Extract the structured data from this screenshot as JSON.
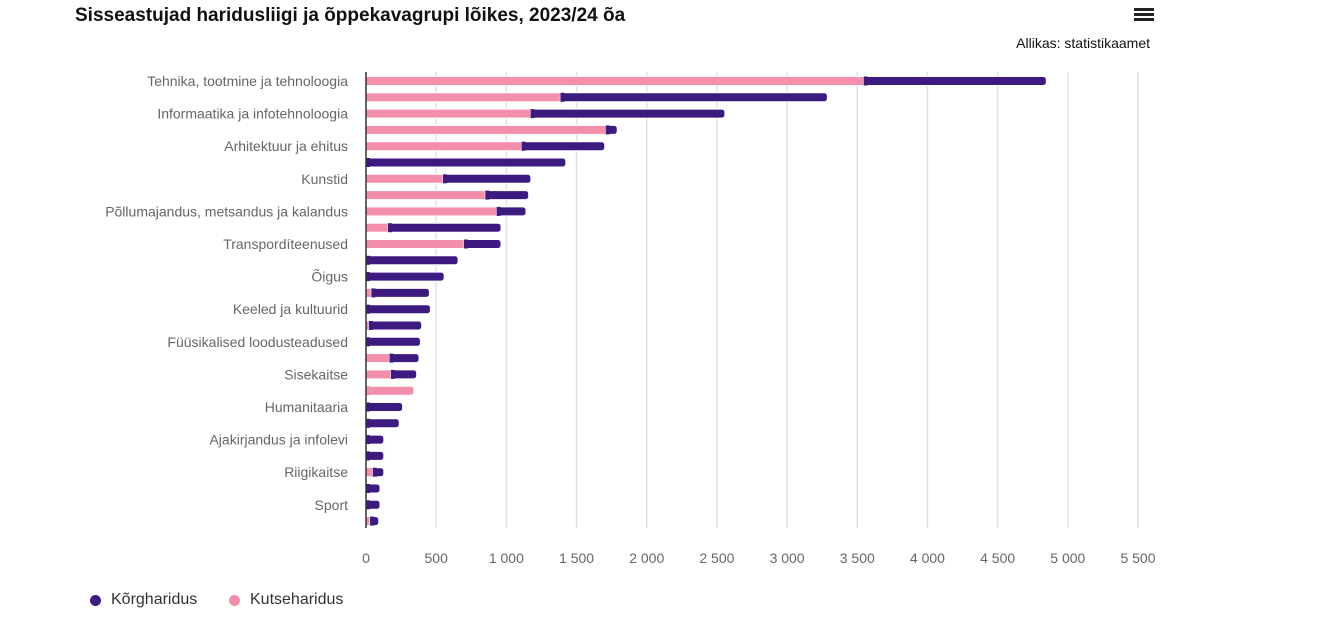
{
  "title": "Sisseastujad haridusliigi ja õppekavagrupi lõikes, 2023/24 õa",
  "source": "Allikas: statistikaamet",
  "menu_icon": "hamburger-menu-icon",
  "chart_data": {
    "type": "bar",
    "orientation": "horizontal",
    "stacked": true,
    "title": "Sisseastujad haridusliigi ja õppekavagrupi lõikes, 2023/24 õa",
    "xlabel": "",
    "ylabel": "",
    "xlim": [
      0,
      5500
    ],
    "xticks": [
      "0",
      "500",
      "1 000",
      "1 500",
      "2 000",
      "2 500",
      "3 000",
      "3 500",
      "4 000",
      "4 500",
      "5 000",
      "5 500"
    ],
    "grid": true,
    "legend_position": "bottom-left",
    "categories": [
      "Tehnika, tootmine ja tehnoloogia",
      "",
      "Informaatika ja infotehnoloogia",
      "",
      "Arhitektuur ja ehitus",
      "",
      "Kunstid",
      "",
      "Põllumajandus, metsandus ja kalandus",
      "",
      "Transpordíteenused",
      "",
      "Õigus",
      "",
      "Keeled ja kultuurid",
      "",
      "Füüsikalised loodusteadused",
      "",
      "Sisekaitse",
      "",
      "Humanitaaria",
      "",
      "Ajakirjandus ja infolevi",
      "",
      "Riigikaitse",
      "",
      "Sport",
      ""
    ],
    "series": [
      {
        "name": "Kutseharidus",
        "color": "#f48fab",
        "values": [
          3545,
          1385,
          1172,
          1707,
          1108,
          0,
          548,
          850,
          930,
          156,
          697,
          0,
          0,
          38,
          0,
          20,
          0,
          167,
          177,
          342,
          0,
          0,
          0,
          0,
          48,
          0,
          0,
          29
        ]
      },
      {
        "name": "Kõrgharidus",
        "color": "#3d1a80",
        "values": [
          1302,
          1902,
          1385,
          83,
          593,
          1424,
          627,
          309,
          210,
          806,
          265,
          656,
          557,
          414,
          459,
          377,
          388,
          211,
          184,
          0,
          261,
          237,
          127,
          127,
          79,
          100,
          100,
          62
        ]
      }
    ]
  },
  "legend": [
    {
      "label": "Kõrgharidus",
      "color": "#3d1a80"
    },
    {
      "label": "Kutseharidus",
      "color": "#f48fab"
    }
  ]
}
